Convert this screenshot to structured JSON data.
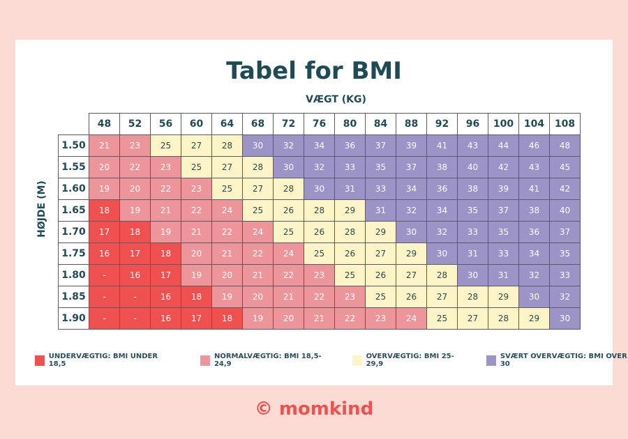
{
  "chart_data": {
    "type": "table",
    "title": "Tabel for BMI",
    "xlabel": "VÆGT (KG)",
    "ylabel": "HØJDE (M)",
    "columns": [
      "48",
      "52",
      "56",
      "60",
      "64",
      "68",
      "72",
      "76",
      "80",
      "84",
      "88",
      "92",
      "96",
      "100",
      "104",
      "108"
    ],
    "rows": [
      {
        "height": "1.50",
        "values": [
          "21",
          "23",
          "25",
          "27",
          "28",
          "30",
          "32",
          "34",
          "36",
          "37",
          "39",
          "41",
          "43",
          "44",
          "46",
          "48"
        ]
      },
      {
        "height": "1.55",
        "values": [
          "20",
          "22",
          "23",
          "25",
          "27",
          "28",
          "30",
          "32",
          "33",
          "35",
          "37",
          "38",
          "40",
          "42",
          "43",
          "45"
        ]
      },
      {
        "height": "1.60",
        "values": [
          "19",
          "20",
          "22",
          "23",
          "25",
          "27",
          "28",
          "30",
          "31",
          "33",
          "34",
          "36",
          "38",
          "39",
          "41",
          "42"
        ]
      },
      {
        "height": "1.65",
        "values": [
          "18",
          "19",
          "21",
          "22",
          "24",
          "25",
          "26",
          "28",
          "29",
          "31",
          "32",
          "34",
          "35",
          "37",
          "38",
          "40"
        ]
      },
      {
        "height": "1.70",
        "values": [
          "17",
          "18",
          "19",
          "21",
          "22",
          "24",
          "25",
          "26",
          "28",
          "29",
          "30",
          "32",
          "33",
          "35",
          "36",
          "37"
        ]
      },
      {
        "height": "1.75",
        "values": [
          "16",
          "17",
          "18",
          "20",
          "21",
          "22",
          "24",
          "25",
          "26",
          "27",
          "29",
          "30",
          "31",
          "33",
          "34",
          "35"
        ]
      },
      {
        "height": "1.80",
        "values": [
          "-",
          "16",
          "17",
          "19",
          "20",
          "21",
          "22",
          "23",
          "25",
          "26",
          "27",
          "28",
          "30",
          "31",
          "32",
          "33"
        ]
      },
      {
        "height": "1.85",
        "values": [
          "-",
          "-",
          "16",
          "18",
          "19",
          "20",
          "21",
          "22",
          "23",
          "25",
          "26",
          "27",
          "28",
          "29",
          "30",
          "32"
        ]
      },
      {
        "height": "1.90",
        "values": [
          "-",
          "-",
          "16",
          "17",
          "18",
          "19",
          "20",
          "21",
          "22",
          "23",
          "24",
          "25",
          "27",
          "28",
          "29",
          "30"
        ]
      }
    ],
    "legend": [
      {
        "key": "under",
        "label": "UNDERVÆGTIG: BMI UNDER 18,5",
        "color": "#ef5150"
      },
      {
        "key": "normal",
        "label": "NORMALVÆGTIG: BMI 18,5-24,9",
        "color": "#ec969b"
      },
      {
        "key": "over",
        "label": "OVERVÆGTIG: BMI 25-29,9",
        "color": "#fdf5c7"
      },
      {
        "key": "very",
        "label": "SVÆRT OVERVÆGTIG: BMI OVER 30",
        "color": "#9c93c7"
      }
    ]
  },
  "brand": {
    "logo": "momkind",
    "logo_symbol": "©",
    "color": "#ef5150"
  },
  "background": "#fbdcd5"
}
